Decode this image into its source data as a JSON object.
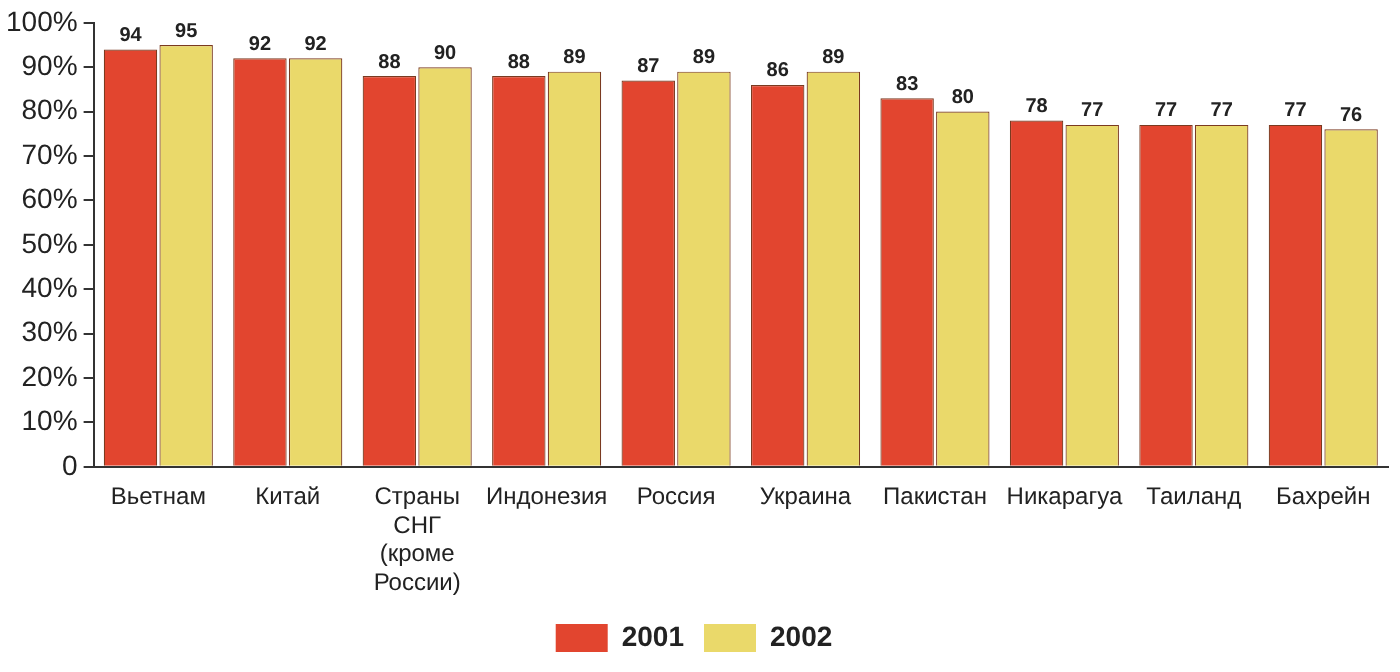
{
  "chart_data": {
    "type": "bar",
    "categories": [
      "Вьетнам",
      "Китай",
      "Страны СНГ (кроме России)",
      "Индонезия",
      "Россия",
      "Украина",
      "Пакистан",
      "Никарагуа",
      "Таиланд",
      "Бахрейн"
    ],
    "series": [
      {
        "name": "2001",
        "color": "#e2452f",
        "values": [
          94,
          92,
          88,
          88,
          87,
          86,
          83,
          78,
          77,
          77
        ]
      },
      {
        "name": "2002",
        "color": "#ead96a",
        "values": [
          95,
          92,
          90,
          89,
          89,
          89,
          80,
          77,
          77,
          76
        ]
      }
    ],
    "ylim": [
      0,
      100
    ],
    "yticks": [
      0,
      {
        "value": 10,
        "label": "10%"
      },
      {
        "value": 20,
        "label": "20%"
      },
      {
        "value": 30,
        "label": "30%"
      },
      {
        "value": 40,
        "label": "40%"
      },
      {
        "value": 50,
        "label": "50%"
      },
      {
        "value": 60,
        "label": "60%"
      },
      {
        "value": 70,
        "label": "70%"
      },
      {
        "value": 80,
        "label": "80%"
      },
      {
        "value": 90,
        "label": "90%"
      },
      {
        "value": 100,
        "label": "100%"
      }
    ],
    "grid": false,
    "legend": "bottom",
    "data_labels": true
  }
}
